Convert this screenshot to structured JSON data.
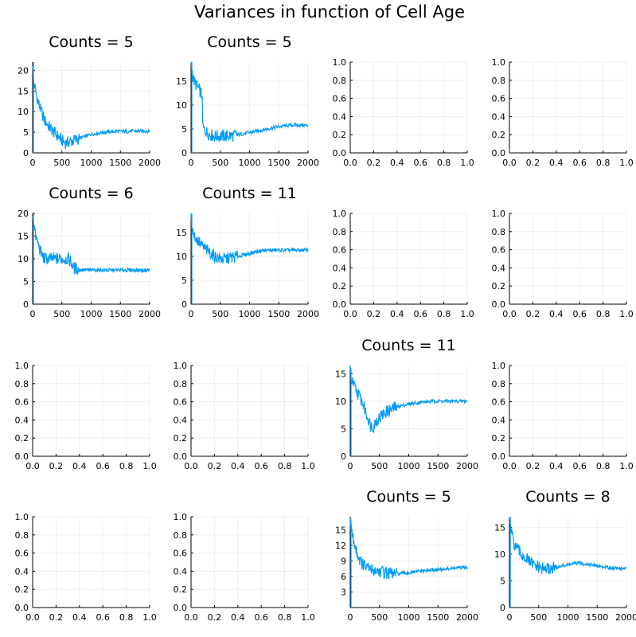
{
  "figure": {
    "title": "Variances in function of Cell Age",
    "line_color": "#009AF9",
    "grid_color": "#EBEBEB"
  },
  "chart_data": [
    {
      "type": "line",
      "title": "Counts = 5",
      "xlim": [
        0,
        2000
      ],
      "ylim": [
        0,
        22
      ],
      "xticks": [
        0,
        500,
        1000,
        1500,
        2000
      ],
      "yticks": [
        0,
        5,
        10,
        15,
        20
      ],
      "series": [
        {
          "x": [
            0,
            10,
            20,
            50,
            100,
            150,
            200,
            300,
            400,
            500,
            550,
            600,
            700,
            800,
            1000,
            1200,
            1400,
            1600,
            1800,
            2000
          ],
          "y": [
            22,
            18,
            17,
            15,
            12,
            10,
            8,
            6,
            4.5,
            3,
            2.5,
            2.5,
            3,
            3.5,
            4.5,
            5,
            5.2,
            5.2,
            5.3,
            5.3
          ]
        }
      ]
    },
    {
      "type": "line",
      "title": "Counts = 5",
      "xlim": [
        0,
        2000
      ],
      "ylim": [
        0,
        19
      ],
      "xticks": [
        0,
        500,
        1000,
        1500,
        2000
      ],
      "yticks": [
        0,
        5,
        10,
        15
      ],
      "series": [
        {
          "x": [
            0,
            20,
            50,
            100,
            150,
            190,
            200,
            210,
            300,
            400,
            500,
            700,
            900,
            1100,
            1300,
            1500,
            1700,
            1900,
            2000
          ],
          "y": [
            19,
            17,
            15,
            14,
            13,
            12,
            6,
            5,
            4,
            3.5,
            3.5,
            3.6,
            4,
            4.5,
            5,
            5.5,
            5.8,
            5.8,
            5.7
          ]
        }
      ]
    },
    {
      "type": "empty",
      "xlim": [
        0,
        1
      ],
      "ylim": [
        0,
        1
      ],
      "xticks": [
        0.0,
        0.2,
        0.4,
        0.6,
        0.8,
        1.0
      ],
      "yticks": [
        0.0,
        0.2,
        0.4,
        0.6,
        0.8,
        1.0
      ]
    },
    {
      "type": "empty",
      "xlim": [
        0,
        1
      ],
      "ylim": [
        0,
        1
      ],
      "xticks": [
        0.0,
        0.2,
        0.4,
        0.6,
        0.8,
        1.0
      ],
      "yticks": [
        0.0,
        0.2,
        0.4,
        0.6,
        0.8,
        1.0
      ]
    },
    {
      "type": "line",
      "title": "Counts = 6",
      "xlim": [
        0,
        2000
      ],
      "ylim": [
        0,
        20
      ],
      "xticks": [
        0,
        500,
        1000,
        1500,
        2000
      ],
      "yticks": [
        0,
        5,
        10,
        15,
        20
      ],
      "series": [
        {
          "x": [
            0,
            20,
            50,
            100,
            150,
            200,
            300,
            400,
            500,
            600,
            650,
            700,
            800,
            1000,
            1200,
            1400,
            1600,
            1800,
            2000
          ],
          "y": [
            20,
            18,
            15,
            13,
            11,
            10,
            10,
            10,
            10,
            10,
            9.5,
            8,
            7.6,
            7.5,
            7.5,
            7.5,
            7.5,
            7.5,
            7.5
          ]
        }
      ]
    },
    {
      "type": "line",
      "title": "Counts = 11",
      "xlim": [
        0,
        2000
      ],
      "ylim": [
        0,
        19
      ],
      "xticks": [
        0,
        500,
        1000,
        1500,
        2000
      ],
      "yticks": [
        0,
        5,
        10,
        15
      ],
      "series": [
        {
          "x": [
            0,
            20,
            50,
            100,
            200,
            300,
            400,
            500,
            600,
            700,
            800,
            900,
            1000,
            1100,
            1200,
            1400,
            1600,
            1800,
            2000
          ],
          "y": [
            19,
            16,
            14.5,
            13.5,
            12,
            11,
            10,
            9.5,
            9.5,
            9.8,
            10,
            10.3,
            10.6,
            11,
            11.2,
            11.3,
            11.3,
            11.3,
            11.3
          ]
        }
      ]
    },
    {
      "type": "empty",
      "xlim": [
        0,
        1
      ],
      "ylim": [
        0,
        1
      ],
      "xticks": [
        0.0,
        0.2,
        0.4,
        0.6,
        0.8,
        1.0
      ],
      "yticks": [
        0.0,
        0.2,
        0.4,
        0.6,
        0.8,
        1.0
      ]
    },
    {
      "type": "empty",
      "xlim": [
        0,
        1
      ],
      "ylim": [
        0,
        1
      ],
      "xticks": [
        0.0,
        0.2,
        0.4,
        0.6,
        0.8,
        1.0
      ],
      "yticks": [
        0.0,
        0.2,
        0.4,
        0.6,
        0.8,
        1.0
      ]
    },
    {
      "type": "empty",
      "xlim": [
        0,
        1
      ],
      "ylim": [
        0,
        1
      ],
      "xticks": [
        0.0,
        0.2,
        0.4,
        0.6,
        0.8,
        1.0
      ],
      "yticks": [
        0.0,
        0.2,
        0.4,
        0.6,
        0.8,
        1.0
      ]
    },
    {
      "type": "empty",
      "xlim": [
        0,
        1
      ],
      "ylim": [
        0,
        1
      ],
      "xticks": [
        0.0,
        0.2,
        0.4,
        0.6,
        0.8,
        1.0
      ],
      "yticks": [
        0.0,
        0.2,
        0.4,
        0.6,
        0.8,
        1.0
      ]
    },
    {
      "type": "line",
      "title": "Counts = 11",
      "xlim": [
        0,
        2000
      ],
      "ylim": [
        0,
        16.5
      ],
      "xticks": [
        0,
        500,
        1000,
        1500,
        2000
      ],
      "yticks": [
        0,
        5,
        10,
        15
      ],
      "series": [
        {
          "x": [
            0,
            20,
            50,
            100,
            200,
            300,
            350,
            400,
            450,
            500,
            600,
            700,
            800,
            1000,
            1200,
            1400,
            1600,
            1800,
            2000
          ],
          "y": [
            16,
            14,
            13,
            12,
            10,
            7,
            5.5,
            5.5,
            6.5,
            7,
            8,
            8.5,
            9,
            9.5,
            9.8,
            10,
            10,
            10,
            10
          ]
        }
      ]
    },
    {
      "type": "empty",
      "xlim": [
        0,
        1
      ],
      "ylim": [
        0,
        1
      ],
      "xticks": [
        0.0,
        0.2,
        0.4,
        0.6,
        0.8,
        1.0
      ],
      "yticks": [
        0.0,
        0.2,
        0.4,
        0.6,
        0.8,
        1.0
      ]
    },
    {
      "type": "empty",
      "xlim": [
        0,
        1
      ],
      "ylim": [
        0,
        1
      ],
      "xticks": [
        0.0,
        0.2,
        0.4,
        0.6,
        0.8,
        1.0
      ],
      "yticks": [
        0.0,
        0.2,
        0.4,
        0.6,
        0.8,
        1.0
      ]
    },
    {
      "type": "empty",
      "xlim": [
        0,
        1
      ],
      "ylim": [
        0,
        1
      ],
      "xticks": [
        0.0,
        0.2,
        0.4,
        0.6,
        0.8,
        1.0
      ],
      "yticks": [
        0.0,
        0.2,
        0.4,
        0.6,
        0.8,
        1.0
      ]
    },
    {
      "type": "line",
      "title": "Counts = 5",
      "xlim": [
        0,
        2000
      ],
      "ylim": [
        0,
        17.5
      ],
      "xticks": [
        0,
        500,
        1000,
        1500,
        2000
      ],
      "yticks": [
        3,
        6,
        9,
        12,
        15
      ],
      "series": [
        {
          "x": [
            0,
            20,
            50,
            100,
            150,
            200,
            300,
            400,
            500,
            600,
            700,
            800,
            1000,
            1200,
            1400,
            1600,
            1800,
            2000
          ],
          "y": [
            17,
            15,
            13,
            11,
            9.5,
            8.5,
            7.5,
            7.2,
            7,
            6.8,
            6.5,
            6.5,
            6.7,
            7,
            7.2,
            7.4,
            7.6,
            7.7
          ]
        }
      ]
    },
    {
      "type": "line",
      "title": "Counts = 8",
      "xlim": [
        0,
        2000
      ],
      "ylim": [
        0,
        17
      ],
      "xticks": [
        0,
        500,
        1000,
        1500,
        2000
      ],
      "yticks": [
        0,
        5,
        10,
        15
      ],
      "series": [
        {
          "x": [
            0,
            20,
            50,
            100,
            200,
            300,
            400,
            500,
            600,
            700,
            800,
            900,
            1000,
            1100,
            1200,
            1300,
            1400,
            1500,
            1600,
            1800,
            2000
          ],
          "y": [
            17,
            15,
            13,
            11.5,
            10,
            9,
            8,
            7.5,
            7.2,
            7.3,
            7.5,
            7.8,
            8,
            8.2,
            8.3,
            8.2,
            8,
            7.8,
            7.6,
            7.4,
            7.3
          ]
        }
      ]
    }
  ]
}
